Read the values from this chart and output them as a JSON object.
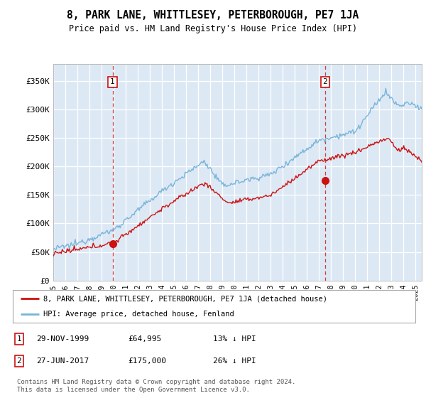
{
  "title": "8, PARK LANE, WHITTLESEY, PETERBOROUGH, PE7 1JA",
  "subtitle": "Price paid vs. HM Land Registry's House Price Index (HPI)",
  "bg_color": "#dce9f5",
  "line_color_hpi": "#7ab4d8",
  "line_color_price": "#cc1111",
  "ylabel_ticks": [
    "£0",
    "£50K",
    "£100K",
    "£150K",
    "£200K",
    "£250K",
    "£300K",
    "£350K"
  ],
  "ylabel_values": [
    0,
    50000,
    100000,
    150000,
    200000,
    250000,
    300000,
    350000
  ],
  "ylim": [
    0,
    380000
  ],
  "xlim_start": 1995.0,
  "xlim_end": 2025.5,
  "sale1_date": 1999.91,
  "sale1_price": 64995,
  "sale1_label": "1",
  "sale1_date_str": "29-NOV-1999",
  "sale1_price_str": "£64,995",
  "sale1_hpi_str": "13% ↓ HPI",
  "sale2_date": 2017.49,
  "sale2_price": 175000,
  "sale2_label": "2",
  "sale2_date_str": "27-JUN-2017",
  "sale2_price_str": "£175,000",
  "sale2_hpi_str": "26% ↓ HPI",
  "legend_label_price": "8, PARK LANE, WHITTLESEY, PETERBOROUGH, PE7 1JA (detached house)",
  "legend_label_hpi": "HPI: Average price, detached house, Fenland",
  "footer": "Contains HM Land Registry data © Crown copyright and database right 2024.\nThis data is licensed under the Open Government Licence v3.0."
}
